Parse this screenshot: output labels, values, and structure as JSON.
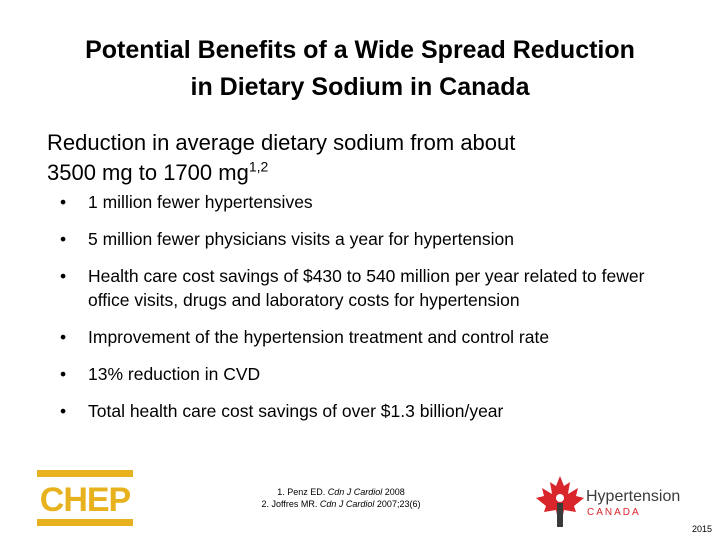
{
  "slide": {
    "title_line1": "Potential Benefits of a Wide Spread Reduction",
    "title_line2": "in Dietary Sodium in Canada",
    "intro_line1": "Reduction in average dietary sodium from about",
    "intro_line2": "3500 mg to 1700 mg",
    "intro_sup": "1,2",
    "bullet_glyph": "•",
    "bullets": [
      "1 million fewer hypertensives",
      "5 million fewer physicians visits a year for hypertension",
      "Health care cost savings of $430 to 540 million per year related to fewer office visits, drugs and laboratory costs for hypertension",
      "Improvement of the hypertension treatment and control rate",
      "13% reduction in CVD",
      "Total health care cost savings of over $1.3 billion/year"
    ]
  },
  "references": {
    "ref1_prefix": "1. Penz ED. ",
    "ref1_journal": "Cdn J Cardiol",
    "ref1_suffix": " 2008",
    "ref2_prefix": "2. Joffres MR. ",
    "ref2_journal": "Cdn J Cardiol",
    "ref2_suffix": " 2007;23(6)"
  },
  "logos": {
    "chep_text": "CHEP",
    "chep_color": "#e8b21e",
    "htn_word": "Hypertension",
    "htn_country": "CANADA",
    "htn_red": "#d9262b"
  },
  "footer": {
    "year": "2015"
  }
}
